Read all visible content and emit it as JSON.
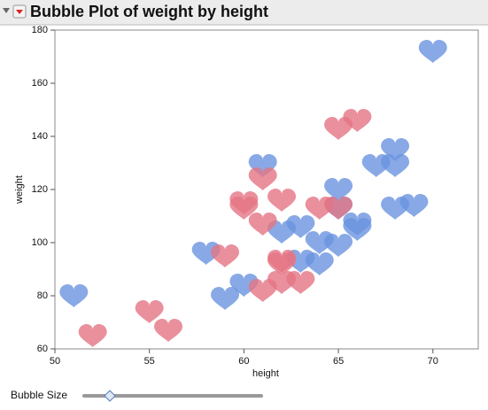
{
  "chart_data": {
    "type": "bubble",
    "title": "Bubble Plot of weight by height",
    "x_label": "height",
    "y_label": "weight",
    "xlim": [
      50,
      72.4
    ],
    "xticks": [
      50,
      55,
      60,
      65,
      70
    ],
    "ylim": [
      60,
      180
    ],
    "yticks": [
      60,
      80,
      100,
      120,
      140,
      160,
      180
    ],
    "series": [
      {
        "color": "#6a93e0",
        "x": [
          70,
          51,
          59,
          60,
          58,
          61,
          62,
          63,
          63,
          64,
          64,
          65,
          65,
          65,
          66,
          66,
          67,
          68,
          68,
          68,
          69
        ],
        "values": [
          172,
          80,
          79,
          84,
          96,
          129,
          104,
          106,
          93,
          92,
          100,
          99,
          120,
          113,
          107,
          105,
          129,
          135,
          129,
          113,
          114
        ]
      },
      {
        "color": "#e57485",
        "x": [
          52,
          55,
          56,
          59,
          60,
          60,
          61,
          61,
          61,
          62,
          62,
          62,
          63,
          64,
          65,
          65,
          66,
          62
        ],
        "values": [
          65,
          74,
          67,
          95,
          115,
          113,
          124,
          107,
          82,
          116,
          93,
          85,
          85,
          113,
          113,
          143,
          146,
          92
        ]
      }
    ]
  },
  "controls": {
    "bubble_size_label": "Bubble Size"
  }
}
